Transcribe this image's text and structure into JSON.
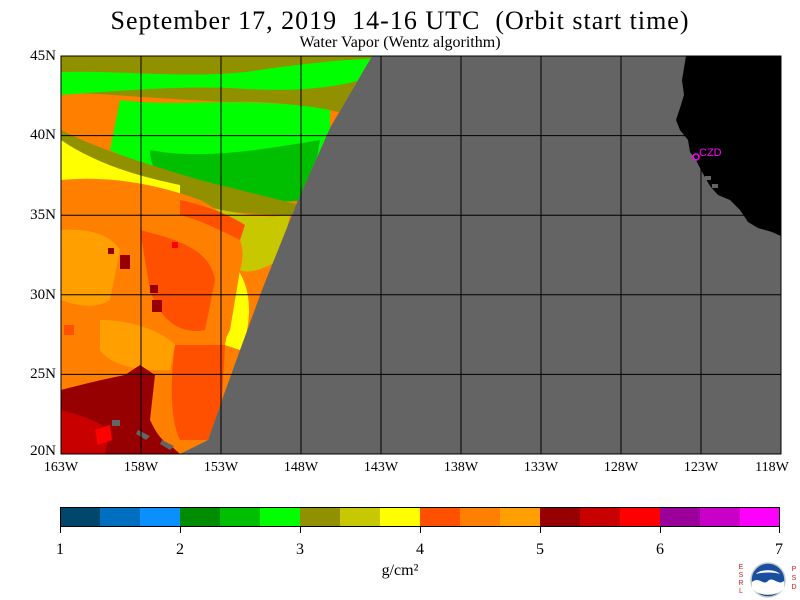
{
  "title": "September 17, 2019  14-16 UTC  (Orbit start time)",
  "subtitle": "Water Vapor (Wentz algorithm)",
  "lat_labels": [
    "45N",
    "40N",
    "35N",
    "30N",
    "25N",
    "20N"
  ],
  "lon_labels": [
    "163W",
    "158W",
    "153W",
    "148W",
    "143W",
    "138W",
    "133W",
    "128W",
    "123W",
    "118W"
  ],
  "station_label": "CZD",
  "colorbar": {
    "colors": [
      "#00476b",
      "#006fbf",
      "#0b8fff",
      "#008c00",
      "#00bf00",
      "#00ff00",
      "#919100",
      "#c8c800",
      "#ffff00",
      "#ff5000",
      "#ff7f00",
      "#ffa000",
      "#960000",
      "#c80000",
      "#ff0000",
      "#9b009b",
      "#c800c8",
      "#ff00ff"
    ],
    "tick_labels": [
      "1",
      "2",
      "3",
      "4",
      "5",
      "6",
      "7"
    ],
    "unit": "g/cm²"
  },
  "logo": {
    "left_letters": "ESRL",
    "right_letters": "PSD",
    "center_text": "NOAA"
  }
}
